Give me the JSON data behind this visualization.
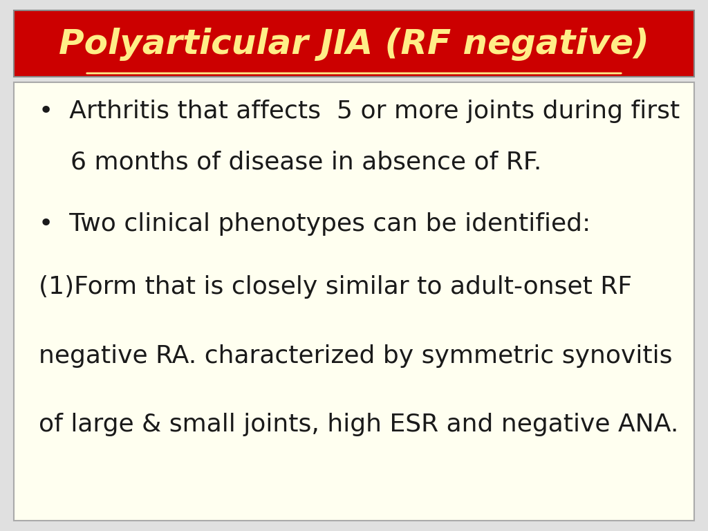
{
  "title": "Polyarticular JIA (RF negative)",
  "title_color": "#FFEE88",
  "title_bg_color": "#CC0000",
  "title_fontsize": 36,
  "content_bg_color": "#FFFFF0",
  "slide_bg_color": "#E0E0E0",
  "bullet_color": "#1a1a1a",
  "bullet_fontsize": 26,
  "bullet1_line1": "•  Arthritis that affects  5 or more joints during first",
  "bullet1_line2": "    6 months of disease in absence of RF.",
  "bullet2": "•  Two clinical phenotypes can be identified:",
  "para1": "(1)Form that is closely similar to adult-onset RF",
  "para2": "negative RA. characterized by symmetric synovitis",
  "para3": "of large & small joints, high ESR and negative ANA."
}
